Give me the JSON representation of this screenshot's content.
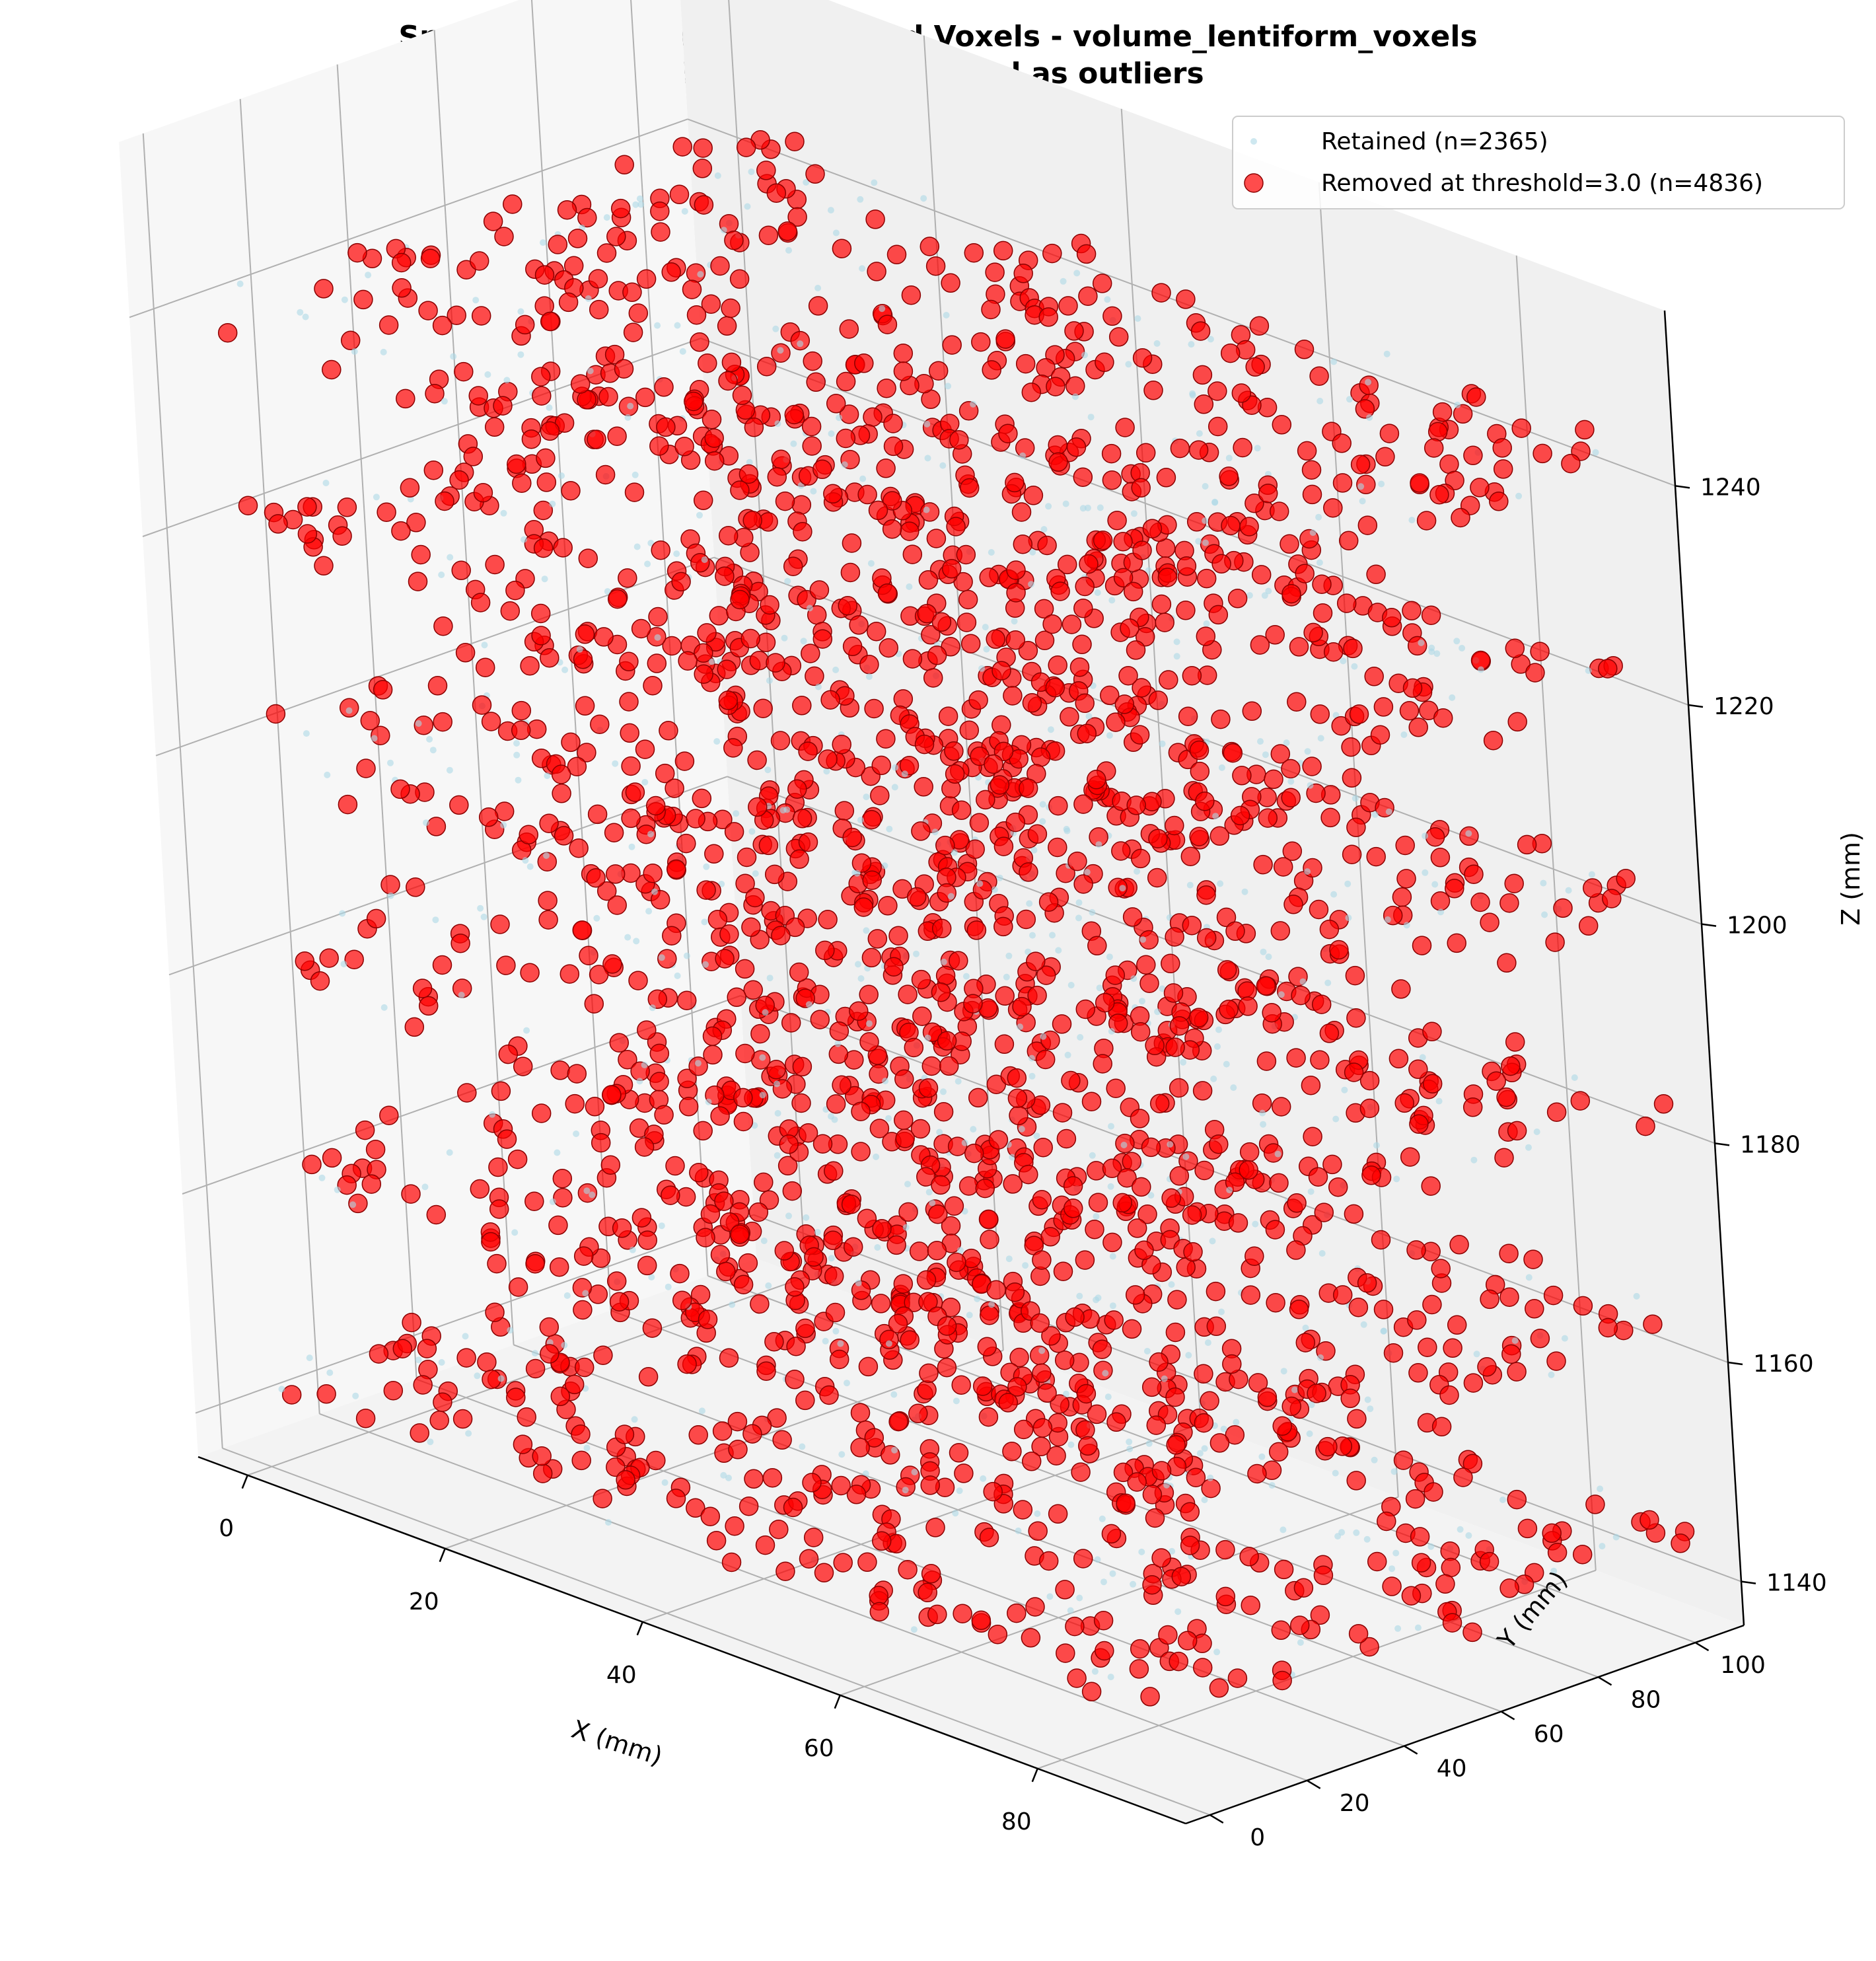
{
  "chart_data": {
    "type": "scatter",
    "projection": "3d",
    "title": "Spatial Distribution of Removed Voxels - volume_lentiform_voxels",
    "subtitle": "67.2% voxels flagged as outliers",
    "xlabel": "X (mm)",
    "ylabel": "Y (mm)",
    "zlabel": "Z (mm)",
    "xlim": [
      -5,
      95
    ],
    "ylim": [
      -5,
      110
    ],
    "zlim": [
      1136,
      1256
    ],
    "xticks": [
      "0",
      "20",
      "40",
      "60",
      "80"
    ],
    "yticks": [
      "0",
      "20",
      "40",
      "60",
      "80",
      "100"
    ],
    "zticks": [
      "1140",
      "1160",
      "1180",
      "1200",
      "1220",
      "1240"
    ],
    "grid": true,
    "legend_position": "top-right",
    "series": [
      {
        "name": "Retained (n=2365)",
        "color": "#add8e6",
        "marker": "small-dot",
        "count": 2365,
        "layers_z": [
          1144,
          1163,
          1183,
          1202,
          1222,
          1241
        ],
        "x_range": [
          0,
          92
        ],
        "y_range": [
          0,
          108
        ]
      },
      {
        "name": "Removed at threshold=3.0 (n=4836)",
        "color": "#ff0000",
        "marker": "circle",
        "count": 4836,
        "layers_z": [
          1144,
          1163,
          1183,
          1202,
          1222,
          1241
        ],
        "x_range": [
          0,
          92
        ],
        "y_range": [
          0,
          108
        ]
      }
    ]
  }
}
